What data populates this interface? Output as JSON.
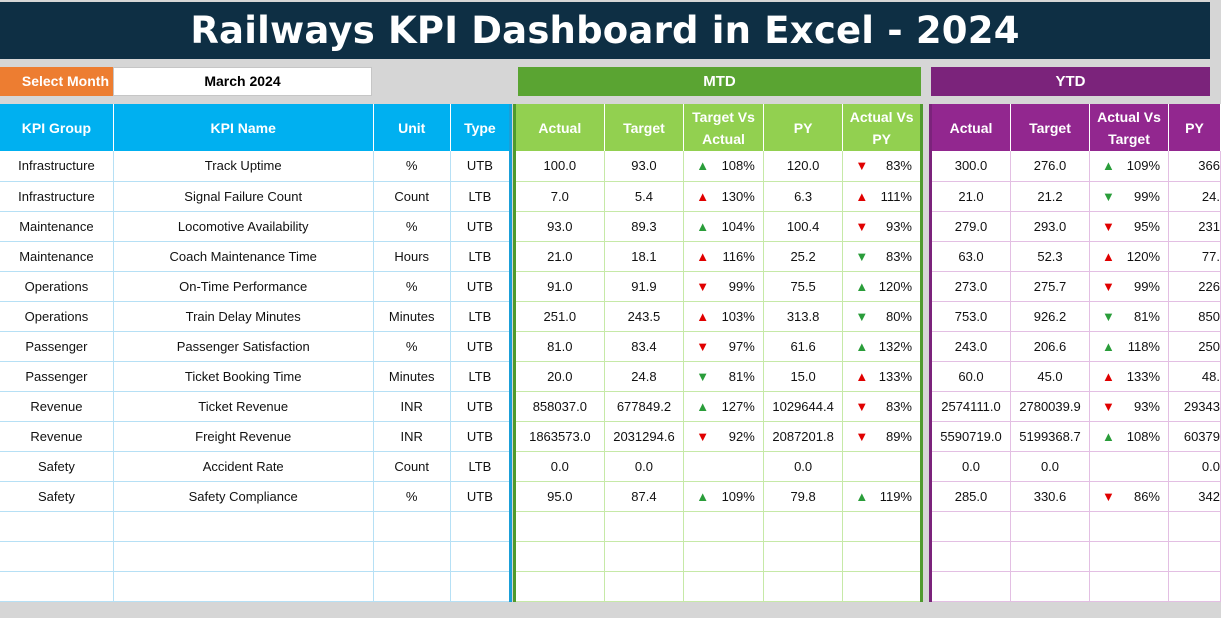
{
  "title": "Railways KPI Dashboard in Excel - 2024",
  "select_month": {
    "label": "Select Month",
    "value": "March 2024"
  },
  "sections": {
    "mtd": "MTD",
    "ytd": "YTD"
  },
  "kpi_headers": [
    "KPI Group",
    "KPI Name",
    "Unit",
    "Type"
  ],
  "mtd_headers": [
    "Actual",
    "Target",
    "Target Vs Actual",
    "PY",
    "Actual Vs PY"
  ],
  "ytd_headers": [
    "Actual",
    "Target",
    "Actual Vs Target",
    "PY"
  ],
  "colors": {
    "up_arrow": "#2a9d3a",
    "down_arrow": "#e00000",
    "mtd": "#5aa432",
    "ytd": "#7b237b",
    "kpi": "#00b0f0"
  },
  "rows": [
    {
      "group": "Infrastructure",
      "name": "Track Uptime",
      "unit": "%",
      "type": "UTB",
      "mtd_actual": "100.0",
      "mtd_target": "93.0",
      "mtd_tva_dir": "up",
      "mtd_tva_color": "green",
      "mtd_tva": "108%",
      "mtd_py": "120.0",
      "mtd_avp_dir": "down",
      "mtd_avp_color": "red",
      "mtd_avp": "83%",
      "ytd_actual": "300.0",
      "ytd_target": "276.0",
      "ytd_avt_dir": "up",
      "ytd_avt_color": "green",
      "ytd_avt": "109%",
      "ytd_py": "366"
    },
    {
      "group": "Infrastructure",
      "name": "Signal Failure Count",
      "unit": "Count",
      "type": "LTB",
      "mtd_actual": "7.0",
      "mtd_target": "5.4",
      "mtd_tva_dir": "up",
      "mtd_tva_color": "red",
      "mtd_tva": "130%",
      "mtd_py": "6.3",
      "mtd_avp_dir": "up",
      "mtd_avp_color": "red",
      "mtd_avp": "111%",
      "ytd_actual": "21.0",
      "ytd_target": "21.2",
      "ytd_avt_dir": "down",
      "ytd_avt_color": "green",
      "ytd_avt": "99%",
      "ytd_py": "24."
    },
    {
      "group": "Maintenance",
      "name": "Locomotive Availability",
      "unit": "%",
      "type": "UTB",
      "mtd_actual": "93.0",
      "mtd_target": "89.3",
      "mtd_tva_dir": "up",
      "mtd_tva_color": "green",
      "mtd_tva": "104%",
      "mtd_py": "100.4",
      "mtd_avp_dir": "down",
      "mtd_avp_color": "red",
      "mtd_avp": "93%",
      "ytd_actual": "279.0",
      "ytd_target": "293.0",
      "ytd_avt_dir": "down",
      "ytd_avt_color": "red",
      "ytd_avt": "95%",
      "ytd_py": "231"
    },
    {
      "group": "Maintenance",
      "name": "Coach Maintenance Time",
      "unit": "Hours",
      "type": "LTB",
      "mtd_actual": "21.0",
      "mtd_target": "18.1",
      "mtd_tva_dir": "up",
      "mtd_tva_color": "red",
      "mtd_tva": "116%",
      "mtd_py": "25.2",
      "mtd_avp_dir": "down",
      "mtd_avp_color": "green",
      "mtd_avp": "83%",
      "ytd_actual": "63.0",
      "ytd_target": "52.3",
      "ytd_avt_dir": "up",
      "ytd_avt_color": "red",
      "ytd_avt": "120%",
      "ytd_py": "77."
    },
    {
      "group": "Operations",
      "name": "On-Time Performance",
      "unit": "%",
      "type": "UTB",
      "mtd_actual": "91.0",
      "mtd_target": "91.9",
      "mtd_tva_dir": "down",
      "mtd_tva_color": "red",
      "mtd_tva": "99%",
      "mtd_py": "75.5",
      "mtd_avp_dir": "up",
      "mtd_avp_color": "green",
      "mtd_avp": "120%",
      "ytd_actual": "273.0",
      "ytd_target": "275.7",
      "ytd_avt_dir": "down",
      "ytd_avt_color": "red",
      "ytd_avt": "99%",
      "ytd_py": "226"
    },
    {
      "group": "Operations",
      "name": "Train Delay Minutes",
      "unit": "Minutes",
      "type": "LTB",
      "mtd_actual": "251.0",
      "mtd_target": "243.5",
      "mtd_tva_dir": "up",
      "mtd_tva_color": "red",
      "mtd_tva": "103%",
      "mtd_py": "313.8",
      "mtd_avp_dir": "down",
      "mtd_avp_color": "green",
      "mtd_avp": "80%",
      "ytd_actual": "753.0",
      "ytd_target": "926.2",
      "ytd_avt_dir": "down",
      "ytd_avt_color": "green",
      "ytd_avt": "81%",
      "ytd_py": "850"
    },
    {
      "group": "Passenger",
      "name": "Passenger Satisfaction",
      "unit": "%",
      "type": "UTB",
      "mtd_actual": "81.0",
      "mtd_target": "83.4",
      "mtd_tva_dir": "down",
      "mtd_tva_color": "red",
      "mtd_tva": "97%",
      "mtd_py": "61.6",
      "mtd_avp_dir": "up",
      "mtd_avp_color": "green",
      "mtd_avp": "132%",
      "ytd_actual": "243.0",
      "ytd_target": "206.6",
      "ytd_avt_dir": "up",
      "ytd_avt_color": "green",
      "ytd_avt": "118%",
      "ytd_py": "250"
    },
    {
      "group": "Passenger",
      "name": "Ticket Booking Time",
      "unit": "Minutes",
      "type": "LTB",
      "mtd_actual": "20.0",
      "mtd_target": "24.8",
      "mtd_tva_dir": "down",
      "mtd_tva_color": "green",
      "mtd_tva": "81%",
      "mtd_py": "15.0",
      "mtd_avp_dir": "up",
      "mtd_avp_color": "red",
      "mtd_avp": "133%",
      "ytd_actual": "60.0",
      "ytd_target": "45.0",
      "ytd_avt_dir": "up",
      "ytd_avt_color": "red",
      "ytd_avt": "133%",
      "ytd_py": "48."
    },
    {
      "group": "Revenue",
      "name": "Ticket Revenue",
      "unit": "INR",
      "type": "UTB",
      "mtd_actual": "858037.0",
      "mtd_target": "677849.2",
      "mtd_tva_dir": "up",
      "mtd_tva_color": "green",
      "mtd_tva": "127%",
      "mtd_py": "1029644.4",
      "mtd_avp_dir": "down",
      "mtd_avp_color": "red",
      "mtd_avp": "83%",
      "ytd_actual": "2574111.0",
      "ytd_target": "2780039.9",
      "ytd_avt_dir": "down",
      "ytd_avt_color": "red",
      "ytd_avt": "93%",
      "ytd_py": "29343"
    },
    {
      "group": "Revenue",
      "name": "Freight Revenue",
      "unit": "INR",
      "type": "UTB",
      "mtd_actual": "1863573.0",
      "mtd_target": "2031294.6",
      "mtd_tva_dir": "down",
      "mtd_tva_color": "red",
      "mtd_tva": "92%",
      "mtd_py": "2087201.8",
      "mtd_avp_dir": "down",
      "mtd_avp_color": "red",
      "mtd_avp": "89%",
      "ytd_actual": "5590719.0",
      "ytd_target": "5199368.7",
      "ytd_avt_dir": "up",
      "ytd_avt_color": "green",
      "ytd_avt": "108%",
      "ytd_py": "60379"
    },
    {
      "group": "Safety",
      "name": "Accident Rate",
      "unit": "Count",
      "type": "LTB",
      "mtd_actual": "0.0",
      "mtd_target": "0.0",
      "mtd_tva_dir": "",
      "mtd_tva_color": "",
      "mtd_tva": "",
      "mtd_py": "0.0",
      "mtd_avp_dir": "",
      "mtd_avp_color": "",
      "mtd_avp": "",
      "ytd_actual": "0.0",
      "ytd_target": "0.0",
      "ytd_avt_dir": "",
      "ytd_avt_color": "",
      "ytd_avt": "",
      "ytd_py": "0.0"
    },
    {
      "group": "Safety",
      "name": "Safety Compliance",
      "unit": "%",
      "type": "UTB",
      "mtd_actual": "95.0",
      "mtd_target": "87.4",
      "mtd_tva_dir": "up",
      "mtd_tva_color": "green",
      "mtd_tva": "109%",
      "mtd_py": "79.8",
      "mtd_avp_dir": "up",
      "mtd_avp_color": "green",
      "mtd_avp": "119%",
      "ytd_actual": "285.0",
      "ytd_target": "330.6",
      "ytd_avt_dir": "down",
      "ytd_avt_color": "red",
      "ytd_avt": "86%",
      "ytd_py": "342"
    }
  ],
  "empty_row_count": 3
}
